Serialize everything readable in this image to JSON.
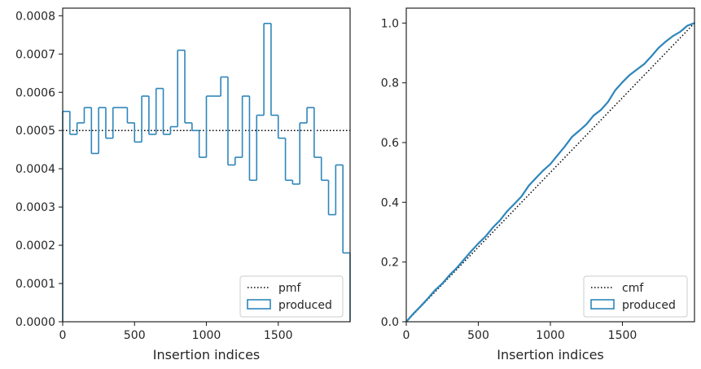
{
  "chart_data": [
    {
      "type": "line",
      "title": "",
      "xlabel": "Insertion indices",
      "ylabel": "",
      "xlim": [
        0,
        2000
      ],
      "ylim": [
        0,
        0.00082
      ],
      "xticks": [
        0,
        500,
        1000,
        1500
      ],
      "xtick_labels": [
        "0",
        "500",
        "1000",
        "1500"
      ],
      "yticks": [
        0,
        0.0001,
        0.0002,
        0.0003,
        0.0004,
        0.0005,
        0.0006,
        0.0007,
        0.0008
      ],
      "ytick_labels": [
        "0.0000",
        "0.0001",
        "0.0002",
        "0.0003",
        "0.0004",
        "0.0005",
        "0.0006",
        "0.0007",
        "0.0008"
      ],
      "grid": false,
      "legend_position": "lower-right",
      "series": [
        {
          "name": "pmf",
          "kind": "dotted-line",
          "color": "#000000",
          "x": [
            0,
            2000
          ],
          "y": [
            0.0005,
            0.0005
          ]
        },
        {
          "name": "produced",
          "kind": "step-histogram",
          "color": "#2e86ba",
          "bin_width": 50,
          "bin_starts": [
            0,
            50,
            100,
            150,
            200,
            250,
            300,
            350,
            400,
            450,
            500,
            550,
            600,
            650,
            700,
            750,
            800,
            850,
            900,
            950,
            1000,
            1050,
            1100,
            1150,
            1200,
            1250,
            1300,
            1350,
            1400,
            1450,
            1500,
            1550,
            1600,
            1650,
            1700,
            1750,
            1800,
            1850,
            1900,
            1950
          ],
          "values": [
            0.00055,
            0.00049,
            0.00052,
            0.00056,
            0.00044,
            0.00056,
            0.00048,
            0.00056,
            0.00056,
            0.00052,
            0.00047,
            0.00059,
            0.00049,
            0.00061,
            0.00049,
            0.00051,
            0.00071,
            0.00052,
            0.0005,
            0.00043,
            0.00059,
            0.00059,
            0.00064,
            0.00041,
            0.00043,
            0.00059,
            0.00037,
            0.00054,
            0.00078,
            0.00054,
            0.00048,
            0.00037,
            0.00036,
            0.00052,
            0.00056,
            0.00043,
            0.00037,
            0.00028,
            0.00041,
            0.00018
          ]
        }
      ]
    },
    {
      "type": "line",
      "title": "",
      "xlabel": "Insertion indices",
      "ylabel": "",
      "xlim": [
        0,
        2000
      ],
      "ylim": [
        0,
        1.05
      ],
      "xticks": [
        0,
        500,
        1000,
        1500
      ],
      "xtick_labels": [
        "0",
        "500",
        "1000",
        "1500"
      ],
      "yticks": [
        0,
        0.2,
        0.4,
        0.6,
        0.8,
        1.0
      ],
      "ytick_labels": [
        "0.0",
        "0.2",
        "0.4",
        "0.6",
        "0.8",
        "1.0"
      ],
      "grid": false,
      "legend_position": "lower-right",
      "series": [
        {
          "name": "cmf",
          "kind": "dotted-line",
          "color": "#000000",
          "x": [
            0,
            2000
          ],
          "y": [
            0,
            1.0
          ]
        },
        {
          "name": "produced",
          "kind": "line",
          "color": "#2e86ba",
          "x": [
            0,
            50,
            100,
            150,
            200,
            250,
            300,
            350,
            400,
            450,
            500,
            550,
            600,
            650,
            700,
            750,
            800,
            850,
            900,
            950,
            1000,
            1050,
            1100,
            1150,
            1200,
            1250,
            1300,
            1350,
            1400,
            1450,
            1500,
            1550,
            1600,
            1650,
            1700,
            1750,
            1800,
            1850,
            1900,
            1950,
            2000
          ],
          "y": [
            0.0,
            0.0275,
            0.052,
            0.078,
            0.106,
            0.128,
            0.156,
            0.18,
            0.208,
            0.236,
            0.262,
            0.2855,
            0.315,
            0.3395,
            0.37,
            0.3945,
            0.42,
            0.4555,
            0.4815,
            0.5065,
            0.528,
            0.5575,
            0.587,
            0.619,
            0.6395,
            0.661,
            0.6905,
            0.709,
            0.736,
            0.775,
            0.802,
            0.826,
            0.8445,
            0.8625,
            0.8885,
            0.9165,
            0.938,
            0.9565,
            0.9705,
            0.991,
            1.0
          ]
        }
      ]
    }
  ]
}
